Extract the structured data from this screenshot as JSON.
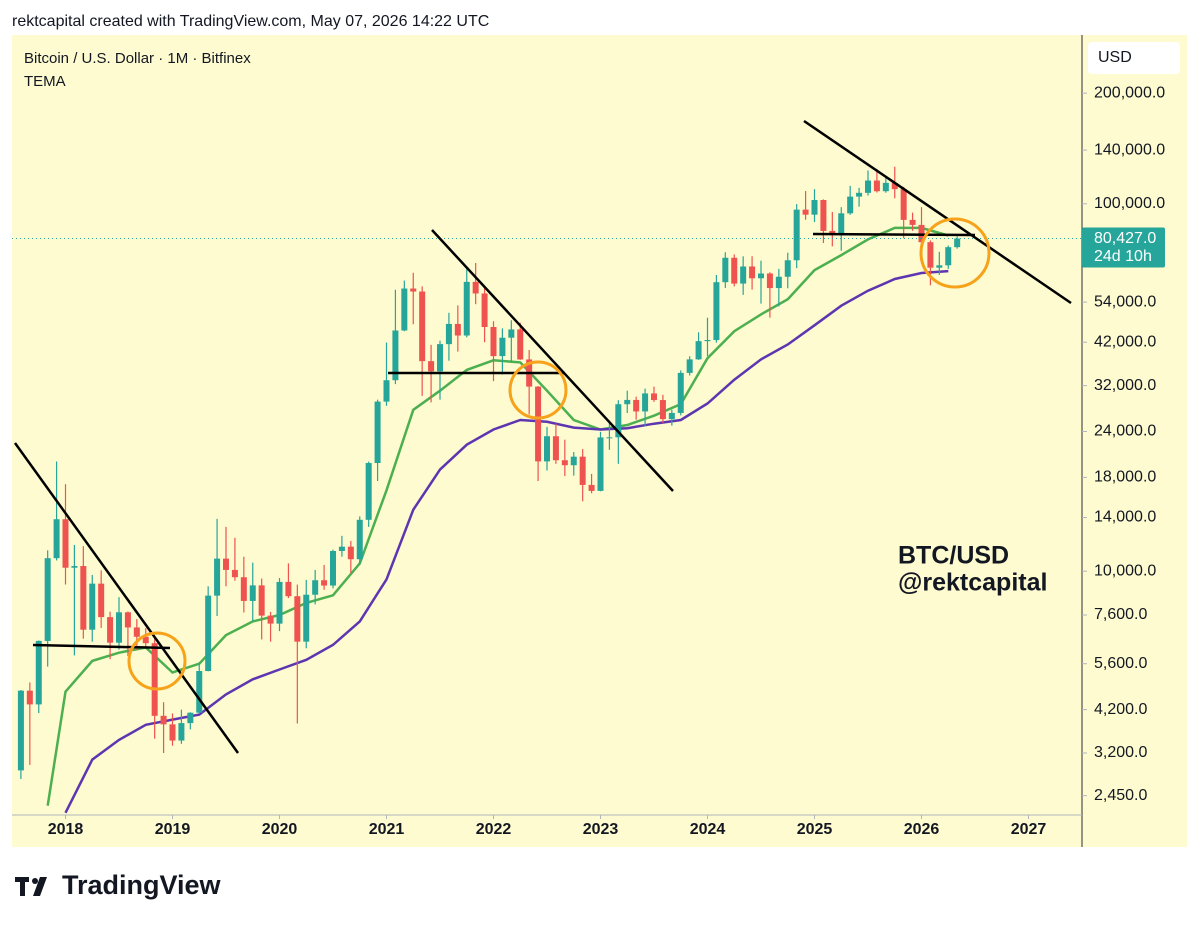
{
  "header": "rektcapital created with TradingView.com, May 07, 2026 14:22 UTC",
  "footer_logo": "TradingView",
  "chart_data": {
    "type": "candlestick",
    "title": "Bitcoin / U.S. Dollar · 1M · Bitfinex",
    "currency": "USD",
    "log_scale": true,
    "up_color": "#26a69a",
    "down_color": "#ef5350",
    "x": [
      "2017-08",
      "2017-09",
      "2017-10",
      "2017-11",
      "2017-12",
      "2018-01",
      "2018-02",
      "2018-03",
      "2018-04",
      "2018-05",
      "2018-06",
      "2018-07",
      "2018-08",
      "2018-09",
      "2018-10",
      "2018-11",
      "2018-12",
      "2019-01",
      "2019-02",
      "2019-03",
      "2019-04",
      "2019-05",
      "2019-06",
      "2019-07",
      "2019-08",
      "2019-09",
      "2019-10",
      "2019-11",
      "2019-12",
      "2020-01",
      "2020-02",
      "2020-03",
      "2020-04",
      "2020-05",
      "2020-06",
      "2020-07",
      "2020-08",
      "2020-09",
      "2020-10",
      "2020-11",
      "2020-12",
      "2021-01",
      "2021-02",
      "2021-03",
      "2021-04",
      "2021-05",
      "2021-06",
      "2021-07",
      "2021-08",
      "2021-09",
      "2021-10",
      "2021-11",
      "2021-12",
      "2022-01",
      "2022-02",
      "2022-03",
      "2022-04",
      "2022-05",
      "2022-06",
      "2022-07",
      "2022-08",
      "2022-09",
      "2022-10",
      "2022-11",
      "2022-12",
      "2023-01",
      "2023-02",
      "2023-03",
      "2023-04",
      "2023-05",
      "2023-06",
      "2023-07",
      "2023-08",
      "2023-09",
      "2023-10",
      "2023-11",
      "2023-12",
      "2024-01",
      "2024-02",
      "2024-03",
      "2024-04",
      "2024-05",
      "2024-06",
      "2024-07",
      "2024-08",
      "2024-09",
      "2024-10",
      "2024-11",
      "2024-12",
      "2025-01",
      "2025-02",
      "2025-03",
      "2025-04",
      "2025-05",
      "2025-06",
      "2025-07",
      "2025-08",
      "2025-09",
      "2025-10",
      "2025-11",
      "2025-12",
      "2026-01",
      "2026-02",
      "2026-03",
      "2026-04",
      "2026-05"
    ],
    "open": [
      2870,
      4730,
      4340,
      6460,
      10850,
      13850,
      10220,
      10330,
      6930,
      9250,
      7500,
      6390,
      7730,
      7030,
      6630,
      6370,
      4040,
      3830,
      3460,
      3860,
      4120,
      5350,
      8580,
      10820,
      10080,
      9630,
      8300,
      9150,
      7570,
      7200,
      9350,
      8550,
      6430,
      8630,
      9450,
      9140,
      11350,
      11660,
      10780,
      13800,
      19700,
      28950,
      33100,
      45200,
      58800,
      57700,
      37300,
      35000,
      41500,
      47100,
      43800,
      61300,
      57000,
      46200,
      38500,
      43200,
      45500,
      37700,
      31800,
      19900,
      23300,
      20050,
      19430,
      20500,
      17170,
      16540,
      23130,
      23140,
      28480,
      29250,
      27220,
      30470,
      29230,
      25940,
      26960,
      34650,
      37720,
      42280,
      42580,
      61180,
      71300,
      60650,
      67500,
      62700,
      64600,
      58970,
      63300,
      70200,
      96400,
      93400,
      102400,
      84350,
      82500,
      94200,
      104600,
      107100,
      115700,
      108200,
      114000,
      109600,
      90400,
      87600,
      78600,
      67000,
      68000,
      76200
    ],
    "high": [
      4750,
      4980,
      6480,
      11400,
      19890,
      17250,
      11790,
      11700,
      9770,
      10050,
      7760,
      8500,
      7770,
      7410,
      7000,
      6600,
      4400,
      4100,
      4200,
      4130,
      5650,
      9100,
      13880,
      13200,
      12330,
      10950,
      10550,
      9550,
      7750,
      9580,
      10500,
      9190,
      9470,
      10080,
      10400,
      11450,
      12480,
      12090,
      14100,
      19880,
      29300,
      41900,
      58350,
      61800,
      64900,
      59600,
      41300,
      42400,
      50500,
      52900,
      67000,
      69000,
      59100,
      47900,
      45800,
      48200,
      47450,
      40000,
      31900,
      24700,
      25200,
      22800,
      21100,
      21500,
      18400,
      23950,
      25250,
      29200,
      31000,
      29850,
      31400,
      31800,
      30200,
      27500,
      35200,
      38450,
      44700,
      48970,
      64000,
      73800,
      72800,
      71950,
      72000,
      70000,
      65100,
      66500,
      73600,
      99800,
      108300,
      109600,
      102800,
      95000,
      97900,
      111900,
      110500,
      123200,
      124400,
      117900,
      126200,
      111200,
      94600,
      97900,
      79500,
      74000,
      77000,
      81500
    ],
    "low": [
      2720,
      2970,
      4110,
      5500,
      10700,
      9200,
      5900,
      6550,
      6430,
      7010,
      5760,
      6120,
      5880,
      6100,
      6200,
      3500,
      3200,
      3350,
      3390,
      3710,
      4090,
      5340,
      7550,
      9100,
      9420,
      7720,
      7300,
      6520,
      6430,
      6870,
      8450,
      3850,
      6170,
      8120,
      8900,
      8980,
      10950,
      9860,
      10400,
      13200,
      17600,
      28200,
      32300,
      45000,
      47000,
      30000,
      28800,
      29300,
      37400,
      39600,
      43300,
      53300,
      42000,
      32900,
      34300,
      37200,
      37600,
      26700,
      17600,
      18800,
      19600,
      18150,
      18200,
      15500,
      16300,
      16500,
      21400,
      19600,
      26950,
      25850,
      24800,
      28900,
      25300,
      24900,
      26550,
      34100,
      37600,
      38500,
      41900,
      59000,
      59600,
      56500,
      58400,
      53500,
      49000,
      52550,
      58900,
      66800,
      90500,
      89200,
      78200,
      76600,
      74500,
      93300,
      98200,
      105300,
      107300,
      107200,
      103500,
      80600,
      84400,
      77000,
      60000,
      64000,
      66500,
      75500
    ],
    "close": [
      4730,
      4340,
      6460,
      10850,
      13850,
      10220,
      10330,
      6930,
      9250,
      7500,
      6390,
      7730,
      7030,
      6630,
      6370,
      4040,
      3830,
      3460,
      3860,
      4120,
      5350,
      8580,
      10820,
      10080,
      9630,
      8300,
      9150,
      7570,
      7200,
      9350,
      8550,
      6430,
      8630,
      9450,
      9140,
      11350,
      11660,
      10780,
      13800,
      19700,
      28950,
      33100,
      45200,
      58800,
      57700,
      37300,
      35000,
      41500,
      47100,
      43800,
      61300,
      57000,
      46200,
      38500,
      43200,
      45500,
      37700,
      31800,
      19900,
      23300,
      20050,
      19430,
      20500,
      17170,
      16540,
      23130,
      23140,
      28480,
      29250,
      27220,
      30470,
      29230,
      25940,
      26960,
      34650,
      37720,
      42280,
      42580,
      61180,
      71300,
      60650,
      67500,
      62700,
      64600,
      58970,
      63300,
      70200,
      96400,
      93400,
      102400,
      84350,
      82500,
      94200,
      104600,
      107100,
      115700,
      108200,
      114000,
      109600,
      90400,
      87600,
      78600,
      67000,
      68000,
      76200,
      80427
    ],
    "indicator": {
      "name": "TEMA",
      "lines": [
        {
          "color": "#4caf50",
          "x": [
            "2017-11",
            "2018-01",
            "2018-04",
            "2018-07",
            "2018-10",
            "2019-01",
            "2019-04",
            "2019-07",
            "2019-10",
            "2020-01",
            "2020-04",
            "2020-07",
            "2020-10",
            "2021-01",
            "2021-04",
            "2021-07",
            "2021-10",
            "2022-01",
            "2022-04",
            "2022-07",
            "2022-10",
            "2023-01",
            "2023-04",
            "2023-07",
            "2023-10",
            "2024-01",
            "2024-04",
            "2024-07",
            "2024-10",
            "2025-01",
            "2025-04",
            "2025-07",
            "2025-10",
            "2026-01",
            "2026-04"
          ],
          "values": [
            2300,
            4700,
            5700,
            6000,
            6200,
            5300,
            5600,
            6700,
            7300,
            7600,
            8200,
            8600,
            10500,
            16600,
            27500,
            31000,
            35300,
            37500,
            37000,
            31000,
            25800,
            24300,
            25000,
            26500,
            28500,
            38000,
            45000,
            50000,
            55000,
            66000,
            72500,
            80000,
            86000,
            86000,
            82000
          ]
        },
        {
          "color": "#5e35b1",
          "x": [
            "2018-01",
            "2018-04",
            "2018-07",
            "2018-10",
            "2019-01",
            "2019-04",
            "2019-07",
            "2019-10",
            "2020-01",
            "2020-04",
            "2020-07",
            "2020-10",
            "2021-01",
            "2021-04",
            "2021-07",
            "2021-10",
            "2022-01",
            "2022-04",
            "2022-07",
            "2022-10",
            "2023-01",
            "2023-04",
            "2023-07",
            "2023-10",
            "2024-01",
            "2024-04",
            "2024-07",
            "2024-10",
            "2025-01",
            "2025-04",
            "2025-07",
            "2025-10",
            "2026-01",
            "2026-04"
          ],
          "values": [
            2200,
            3070,
            3475,
            3820,
            3945,
            4070,
            4620,
            5080,
            5400,
            5740,
            6300,
            7300,
            9500,
            14700,
            18900,
            22100,
            24300,
            25800,
            25500,
            24600,
            24300,
            24500,
            25200,
            25800,
            28600,
            33200,
            37700,
            41400,
            46700,
            52800,
            58000,
            62400,
            64800,
            65600
          ]
        }
      ]
    },
    "xlim": [
      "2017-07",
      "2027-07"
    ],
    "xticks": [
      2018,
      2019,
      2020,
      2021,
      2022,
      2023,
      2024,
      2025,
      2026,
      2027
    ],
    "ylim": [
      2170,
      288000
    ],
    "yticks": [
      {
        "value": 200000,
        "label": "200,000.0"
      },
      {
        "value": 140000,
        "label": "140,000.0"
      },
      {
        "value": 100000,
        "label": "100,000.0"
      },
      {
        "value": 54000,
        "label": "54,000.0"
      },
      {
        "value": 42000,
        "label": "42,000.0"
      },
      {
        "value": 32000,
        "label": "32,000.0"
      },
      {
        "value": 24000,
        "label": "24,000.0"
      },
      {
        "value": 18000,
        "label": "18,000.0"
      },
      {
        "value": 14000,
        "label": "14,000.0"
      },
      {
        "value": 10000,
        "label": "10,000.0"
      },
      {
        "value": 7600,
        "label": "7,600.0"
      },
      {
        "value": 5600,
        "label": "5,600.0"
      },
      {
        "value": 4200,
        "label": "4,200.0"
      },
      {
        "value": 3200,
        "label": "3,200.0"
      },
      {
        "value": 2450,
        "label": "2,450.0"
      }
    ],
    "last_price": {
      "value": 80427,
      "label": "80,427.0"
    },
    "countdown": "24d 10h",
    "annotations": [
      "BTC/USD",
      "@rektcapital"
    ]
  }
}
